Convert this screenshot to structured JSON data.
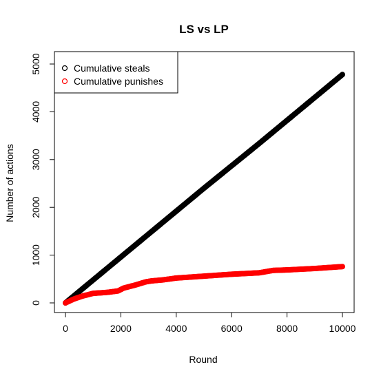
{
  "chart_data": {
    "type": "scatter",
    "title": "LS vs LP",
    "xlabel": "Round",
    "ylabel": "Number of actions",
    "xlim": [
      0,
      10000
    ],
    "ylim": [
      0,
      5000
    ],
    "x_ticks": [
      "0",
      "2000",
      "4000",
      "6000",
      "8000",
      "10000"
    ],
    "y_ticks": [
      "0",
      "1000",
      "2000",
      "3000",
      "4000",
      "5000"
    ],
    "legend_position": "top-left",
    "series": [
      {
        "name": "Cumulative steals",
        "color": "#000000",
        "x": [
          0,
          1000,
          2000,
          3000,
          4000,
          5000,
          6000,
          7000,
          8000,
          9000,
          10000
        ],
        "y": [
          0,
          480,
          960,
          1440,
          1920,
          2400,
          2870,
          3340,
          3820,
          4300,
          4780
        ]
      },
      {
        "name": "Cumulative punishes",
        "color": "#ff0000",
        "x": [
          0,
          300,
          600,
          1000,
          1500,
          1900,
          2100,
          2500,
          2900,
          3100,
          3500,
          4000,
          5000,
          6000,
          7000,
          7500,
          8000,
          9000,
          10000
        ],
        "y": [
          0,
          80,
          140,
          200,
          220,
          250,
          310,
          370,
          440,
          460,
          480,
          520,
          560,
          600,
          630,
          680,
          690,
          720,
          760
        ]
      }
    ]
  }
}
